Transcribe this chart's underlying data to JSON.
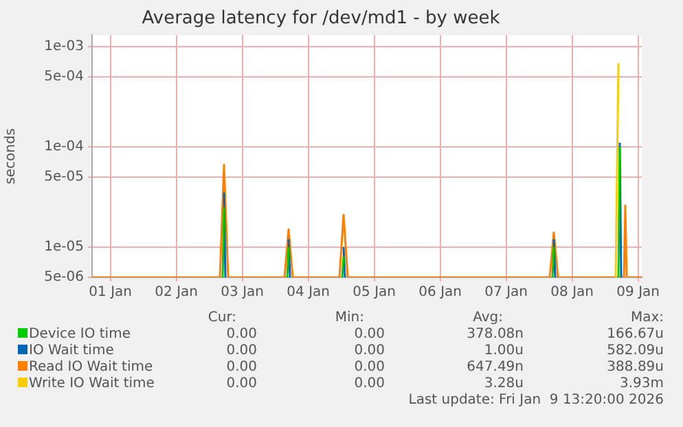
{
  "chart_data": {
    "type": "line",
    "title": "Average latency for /dev/md1 - by week",
    "ylabel": "seconds",
    "series": [
      {
        "name": "Device IO time",
        "color": "#00cc00",
        "x": [
          "2026-01-03T04:50",
          "2026-01-03T05:20",
          null,
          "2026-01-04T04:20",
          "2026-01-04T04:50",
          null,
          "2026-01-05T00:20",
          "2026-01-05T00:50",
          null,
          "2026-01-08T04:50",
          "2026-01-08T05:20",
          null,
          "2026-01-09T04:50",
          "2026-01-09T05:20"
        ],
        "values": [
          5e-06,
          2.5e-05,
          null,
          5e-06,
          1e-05,
          null,
          5e-06,
          8e-06,
          null,
          5e-06,
          1e-05,
          null,
          5e-06,
          0.0001
        ]
      },
      {
        "name": "IO Wait time",
        "color": "#0066b3",
        "x": [
          "2026-01-03T05:20",
          "2026-01-03T05:50",
          null,
          "2026-01-04T04:50",
          "2026-01-04T05:20",
          null,
          "2026-01-05T00:50",
          "2026-01-05T01:20",
          null,
          "2026-01-08T05:20",
          "2026-01-08T05:50",
          null,
          "2026-01-09T05:20",
          "2026-01-09T05:50"
        ],
        "values": [
          3.5e-05,
          5e-06,
          null,
          1.2e-05,
          5e-06,
          null,
          1e-05,
          5e-06,
          null,
          1.2e-05,
          5e-06,
          null,
          0.00011,
          5e-06
        ]
      },
      {
        "name": "Read IO Wait time",
        "color": "#ff8000",
        "x": [
          "2026-01-01T05:20",
          "2026-01-03T03:50",
          "2026-01-03T05:20",
          "2026-01-03T06:50",
          "2026-01-04T03:20",
          "2026-01-04T04:50",
          "2026-01-04T06:20",
          "2026-01-04T23:20",
          "2026-01-05T00:50",
          "2026-01-05T02:20",
          "2026-01-08T03:50",
          "2026-01-08T05:20",
          "2026-01-08T06:50",
          "2026-01-09T06:50",
          "2026-01-09T07:20",
          "2026-01-09T07:50",
          "2026-01-09T13:20"
        ],
        "values": [
          5e-06,
          5e-06,
          6.6e-05,
          5e-06,
          5e-06,
          1.5e-05,
          5e-06,
          5e-06,
          2.1e-05,
          5e-06,
          5e-06,
          1.4e-05,
          5e-06,
          5e-06,
          2.6e-05,
          5e-06,
          5e-06
        ]
      },
      {
        "name": "Write IO Wait time",
        "color": "#ffcc00",
        "x": [
          "2026-01-09T03:50",
          "2026-01-09T04:50"
        ],
        "values": [
          5e-06,
          0.00068
        ]
      }
    ],
    "log": "y",
    "ylim": [
      5e-06,
      0.0013
    ],
    "yticks": [
      {
        "value": 0.001,
        "label": "1e-03"
      },
      {
        "value": 0.0005,
        "label": "5e-04"
      },
      {
        "value": 0.0001,
        "label": "1e-04"
      },
      {
        "value": 5e-05,
        "label": "5e-05"
      },
      {
        "value": 1e-05,
        "label": "1e-05"
      },
      {
        "value": 5e-06,
        "label": "5e-06"
      }
    ],
    "xlim": [
      "2026-01-01T05:20",
      "2026-01-09T13:20"
    ],
    "xticks": [
      {
        "value": "2026-01-01T12:00",
        "label": "01 Jan"
      },
      {
        "value": "2026-01-02T12:00",
        "label": "02 Jan"
      },
      {
        "value": "2026-01-03T12:00",
        "label": "03 Jan"
      },
      {
        "value": "2026-01-04T12:00",
        "label": "04 Jan"
      },
      {
        "value": "2026-01-05T12:00",
        "label": "05 Jan"
      },
      {
        "value": "2026-01-06T12:00",
        "label": "06 Jan"
      },
      {
        "value": "2026-01-07T12:00",
        "label": "07 Jan"
      },
      {
        "value": "2026-01-08T12:00",
        "label": "08 Jan"
      },
      {
        "value": "2026-01-09T12:00",
        "label": "09 Jan"
      }
    ],
    "grid": true,
    "legend": "bottom",
    "marker": "none",
    "line_style": "solid",
    "annotations": [
      "Cur:",
      "Min:",
      "Avg:",
      "Max:",
      "0.00",
      "0.00",
      "378.08n",
      "166.67u",
      "0.00",
      "0.00",
      "1.00u",
      "582.09u",
      "0.00",
      "0.00",
      "647.49n",
      "388.89u",
      "0.00",
      "0.00",
      "3.28u",
      "3.93m",
      "Last update: Fri Jan  9 13:20:00 2026"
    ]
  }
}
